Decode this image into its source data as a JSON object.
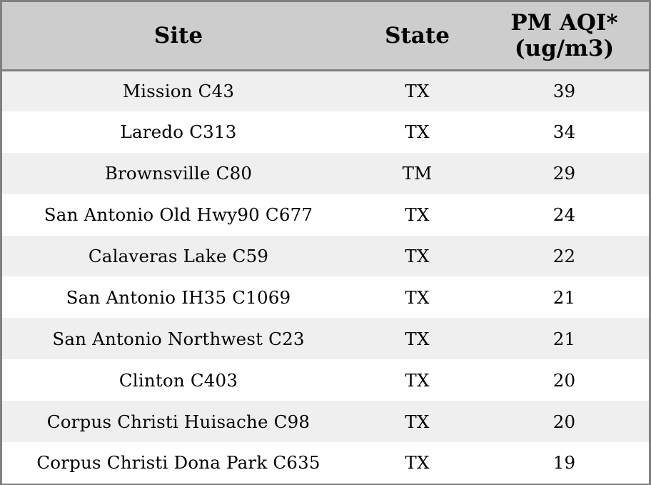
{
  "table": {
    "headers": {
      "site": "Site",
      "state": "State",
      "aqi_line1": "PM AQI*",
      "aqi_line2": "(ug/m3)"
    },
    "rows": [
      {
        "site": "Mission C43",
        "state": "TX",
        "aqi": "39"
      },
      {
        "site": "Laredo C313",
        "state": "TX",
        "aqi": "34"
      },
      {
        "site": "Brownsville C80",
        "state": "TM",
        "aqi": "29"
      },
      {
        "site": "San Antonio Old Hwy90 C677",
        "state": "TX",
        "aqi": "24"
      },
      {
        "site": "Calaveras Lake C59",
        "state": "TX",
        "aqi": "22"
      },
      {
        "site": "San Antonio IH35 C1069",
        "state": "TX",
        "aqi": "21"
      },
      {
        "site": "San Antonio Northwest C23",
        "state": "TX",
        "aqi": "21"
      },
      {
        "site": "Clinton C403",
        "state": "TX",
        "aqi": "20"
      },
      {
        "site": "Corpus Christi Huisache C98",
        "state": "TX",
        "aqi": "20"
      },
      {
        "site": "Corpus Christi Dona Park C635",
        "state": "TX",
        "aqi": "19"
      }
    ]
  },
  "colors": {
    "header_bg": "#cdcdcd",
    "stripe_bg": "#efefef",
    "border": "#808080"
  }
}
